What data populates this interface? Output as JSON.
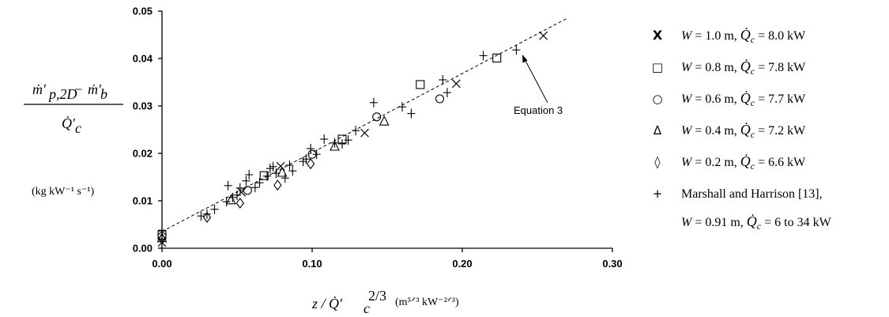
{
  "chart_data": {
    "type": "scatter",
    "xlim": [
      0,
      0.3
    ],
    "ylim": [
      0,
      0.05
    ],
    "x_ticks": [
      "0.00",
      "0.10",
      "0.20",
      "0.30"
    ],
    "y_ticks": [
      "0.00",
      "0.01",
      "0.02",
      "0.03",
      "0.04",
      "0.05"
    ],
    "x_tick_values": [
      0,
      0.1,
      0.2,
      0.3
    ],
    "y_tick_values": [
      0,
      0.01,
      0.02,
      0.03,
      0.04,
      0.05
    ],
    "grid": false,
    "legend_position": "right",
    "ylabel_units": "(kg kW⁻¹ s⁻¹)",
    "xlabel_units": "(m⁵ᐟ³ kW⁻²ᐟ³)",
    "annotation": {
      "text": "Equation 3",
      "x": 0.225,
      "y": 0.0405
    },
    "fit_line": {
      "name": "Equation 3",
      "x": [
        0,
        0.27
      ],
      "y": [
        0.0035,
        0.0485
      ]
    },
    "series": [
      {
        "name": "W = 1.0 m, Qc = 8.0 kW",
        "marker": "x",
        "legend_symbol": "X",
        "legend_W": "1.0",
        "legend_Q": "8.0 kW",
        "points": [
          [
            0,
            0.0012
          ],
          [
            0.053,
            0.0118
          ],
          [
            0.079,
            0.0173
          ],
          [
            0.135,
            0.0243
          ],
          [
            0.196,
            0.0347
          ],
          [
            0.254,
            0.0448
          ]
        ]
      },
      {
        "name": "W = 0.8 m, Qc = 7.8 kW",
        "marker": "square",
        "legend_symbol": "□",
        "legend_W": "0.8",
        "legend_Q": "7.8 kW",
        "points": [
          [
            0,
            0.0028
          ],
          [
            0.068,
            0.0153
          ],
          [
            0.12,
            0.023
          ],
          [
            0.172,
            0.0345
          ],
          [
            0.223,
            0.0401
          ]
        ]
      },
      {
        "name": "W = 0.6 m, Qc = 7.7 kW",
        "marker": "circle",
        "legend_symbol": "○",
        "legend_W": "0.6",
        "legend_Q": "7.7 kW",
        "points": [
          [
            0,
            0.0025
          ],
          [
            0.057,
            0.0122
          ],
          [
            0.1,
            0.0198
          ],
          [
            0.143,
            0.0277
          ],
          [
            0.185,
            0.0315
          ]
        ]
      },
      {
        "name": "W = 0.4 m, Qc = 7.2 kW",
        "marker": "triangle",
        "legend_symbol": "Δ",
        "legend_W": "0.4",
        "legend_Q": "7.2 kW",
        "points": [
          [
            0,
            0.0022
          ],
          [
            0.046,
            0.0102
          ],
          [
            0.08,
            0.016
          ],
          [
            0.115,
            0.0215
          ],
          [
            0.148,
            0.0268
          ]
        ]
      },
      {
        "name": "W = 0.2 m, Qc = 6.6 kW",
        "marker": "diamond",
        "legend_symbol": "◊",
        "legend_W": "0.2",
        "legend_Q": "6.6 kW",
        "points": [
          [
            0,
            0.002
          ],
          [
            0.03,
            0.0065
          ],
          [
            0.052,
            0.0095
          ],
          [
            0.077,
            0.0133
          ],
          [
            0.099,
            0.0178
          ]
        ]
      },
      {
        "name": "Marshall and Harrison [13], W = 0.91 m, Qc = 6 to 34 kW",
        "marker": "plus",
        "legend_symbol": "+",
        "legend_label": "Marshall and Harrison [13],",
        "legend_W": "0.91",
        "legend_Q": "6 to 34 kW",
        "points": [
          [
            0,
            0.0038
          ],
          [
            0.026,
            0.0068
          ],
          [
            0.03,
            0.0072
          ],
          [
            0.035,
            0.0082
          ],
          [
            0.043,
            0.0098
          ],
          [
            0.044,
            0.0132
          ],
          [
            0.047,
            0.0107
          ],
          [
            0.05,
            0.0112
          ],
          [
            0.052,
            0.0127
          ],
          [
            0.056,
            0.0142
          ],
          [
            0.058,
            0.0155
          ],
          [
            0.062,
            0.0128
          ],
          [
            0.065,
            0.0138
          ],
          [
            0.07,
            0.0152
          ],
          [
            0.072,
            0.0168
          ],
          [
            0.074,
            0.0172
          ],
          [
            0.076,
            0.0158
          ],
          [
            0.082,
            0.0148
          ],
          [
            0.085,
            0.0175
          ],
          [
            0.087,
            0.0163
          ],
          [
            0.094,
            0.0183
          ],
          [
            0.096,
            0.0188
          ],
          [
            0.099,
            0.021
          ],
          [
            0.103,
            0.0198
          ],
          [
            0.108,
            0.023
          ],
          [
            0.115,
            0.0222
          ],
          [
            0.12,
            0.022
          ],
          [
            0.124,
            0.0228
          ],
          [
            0.129,
            0.0248
          ],
          [
            0.141,
            0.0307
          ],
          [
            0.16,
            0.0298
          ],
          [
            0.166,
            0.0284
          ],
          [
            0.187,
            0.0355
          ],
          [
            0.19,
            0.0328
          ],
          [
            0.214,
            0.0406
          ],
          [
            0.236,
            0.0418
          ]
        ]
      }
    ]
  }
}
